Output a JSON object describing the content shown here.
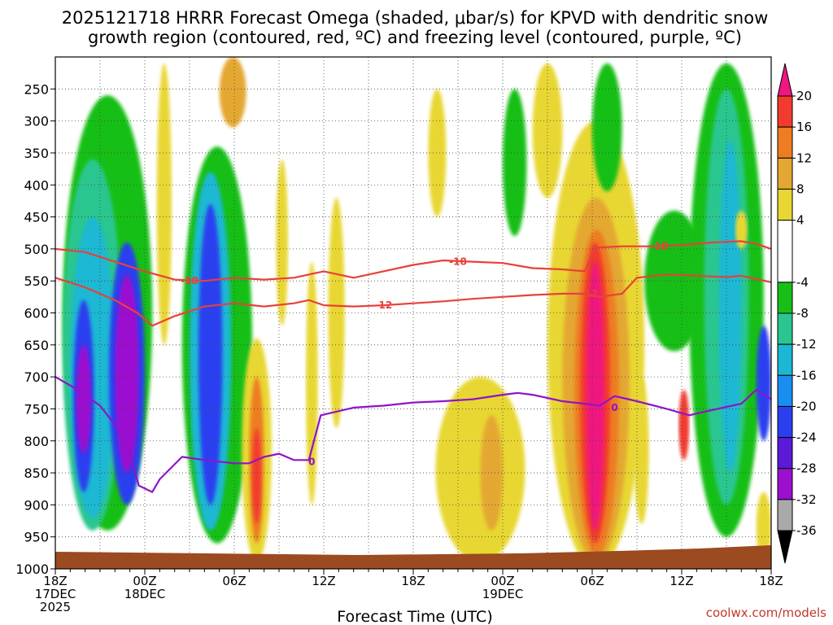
{
  "chart_data": {
    "type": "heatmap",
    "title_line1": "2025121718 HRRR Forecast Omega (shaded, μbar/s) for KPVD with dendritic snow",
    "title_line2": "growth region (contoured, red, ºC) and freezing level (contoured, purple, ºC)",
    "xlabel": "Forecast Time (UTC)",
    "credit": "coolwx.com/models",
    "y_axis": {
      "ylabel": "",
      "ylim": [
        1000,
        200
      ],
      "ticks": [
        250,
        300,
        350,
        400,
        450,
        500,
        550,
        600,
        650,
        700,
        750,
        800,
        850,
        900,
        950,
        1000
      ],
      "tick_labels": [
        "250",
        "300",
        "350",
        "400",
        "450",
        "500",
        "550",
        "600",
        "650",
        "700",
        "750",
        "800",
        "850",
        "900",
        "950",
        "1000"
      ]
    },
    "x_axis": {
      "xlim": [
        0,
        48
      ],
      "ticks": [
        {
          "hour": 0,
          "lines": [
            "18Z",
            "17DEC",
            "2025"
          ]
        },
        {
          "hour": 6,
          "lines": [
            "00Z",
            "18DEC"
          ]
        },
        {
          "hour": 12,
          "lines": [
            "06Z"
          ]
        },
        {
          "hour": 18,
          "lines": [
            "12Z"
          ]
        },
        {
          "hour": 24,
          "lines": [
            "18Z"
          ]
        },
        {
          "hour": 30,
          "lines": [
            "00Z",
            "19DEC"
          ]
        },
        {
          "hour": 36,
          "lines": [
            "06Z"
          ]
        },
        {
          "hour": 42,
          "lines": [
            "12Z"
          ]
        },
        {
          "hour": 48,
          "lines": [
            "18Z"
          ]
        }
      ]
    },
    "colorbar": {
      "tick_labels": [
        "20",
        "16",
        "12",
        "8",
        "4",
        "-4",
        "-8",
        "-12",
        "-16",
        "-20",
        "-24",
        "-28",
        "-32",
        "-36"
      ],
      "bins": [
        {
          "from": 20,
          "to": 28,
          "color": "#f0157f"
        },
        {
          "from": 16,
          "to": 20,
          "color": "#f23b2e"
        },
        {
          "from": 12,
          "to": 16,
          "color": "#ee7d22"
        },
        {
          "from": 8,
          "to": 12,
          "color": "#e4a832"
        },
        {
          "from": 4,
          "to": 8,
          "color": "#e8d733"
        },
        {
          "from": -4,
          "to": 4,
          "color": "#ffffff"
        },
        {
          "from": -8,
          "to": -4,
          "color": "#17bf17"
        },
        {
          "from": -12,
          "to": -8,
          "color": "#2bc690"
        },
        {
          "from": -16,
          "to": -12,
          "color": "#1ab8d4"
        },
        {
          "from": -20,
          "to": -16,
          "color": "#1a8ef0"
        },
        {
          "from": -24,
          "to": -20,
          "color": "#2b3ff0"
        },
        {
          "from": -28,
          "to": -24,
          "color": "#5b19d8"
        },
        {
          "from": -32,
          "to": -28,
          "color": "#9b0fcf"
        },
        {
          "from": -36,
          "to": -32,
          "color": "#a9a9a9"
        },
        {
          "from": -44,
          "to": -36,
          "color": "#000000"
        }
      ]
    },
    "shaded_regions": [
      {
        "value": -10,
        "color": "#17bf17",
        "hours": [
          0.5,
          6.5
        ],
        "p": [
          260,
          940
        ]
      },
      {
        "value": -14,
        "color": "#2bc690",
        "hours": [
          0.5,
          4.5
        ],
        "p": [
          360,
          940
        ]
      },
      {
        "value": -18,
        "color": "#1ab8d4",
        "hours": [
          1.0,
          4.0
        ],
        "p": [
          450,
          920
        ]
      },
      {
        "value": -22,
        "color": "#2b3ff0",
        "hours": [
          1.2,
          2.6
        ],
        "p": [
          580,
          880
        ]
      },
      {
        "value": -30,
        "color": "#9b0fcf",
        "hours": [
          1.4,
          2.4
        ],
        "p": [
          650,
          820
        ]
      },
      {
        "value": -22,
        "color": "#2b3ff0",
        "hours": [
          3.6,
          6.0
        ],
        "p": [
          490,
          900
        ]
      },
      {
        "value": -30,
        "color": "#9b0fcf",
        "hours": [
          4.0,
          5.6
        ],
        "p": [
          540,
          850
        ]
      },
      {
        "value": -10,
        "color": "#17bf17",
        "hours": [
          8.5,
          13.2
        ],
        "p": [
          340,
          960
        ]
      },
      {
        "value": -18,
        "color": "#1ab8d4",
        "hours": [
          9.0,
          11.8
        ],
        "p": [
          380,
          940
        ]
      },
      {
        "value": -24,
        "color": "#2b3ff0",
        "hours": [
          9.6,
          11.2
        ],
        "p": [
          430,
          900
        ]
      },
      {
        "value": 6,
        "color": "#e8d733",
        "hours": [
          6.8,
          7.8
        ],
        "p": [
          210,
          650
        ]
      },
      {
        "value": 10,
        "color": "#e4a832",
        "hours": [
          11.0,
          12.8
        ],
        "p": [
          200,
          310
        ]
      },
      {
        "value": 6,
        "color": "#e8d733",
        "hours": [
          12.5,
          14.5
        ],
        "p": [
          640,
          990
        ]
      },
      {
        "value": 14,
        "color": "#ee7d22",
        "hours": [
          13.0,
          14.0
        ],
        "p": [
          700,
          960
        ]
      },
      {
        "value": 18,
        "color": "#f23b2e",
        "hours": [
          13.2,
          13.8
        ],
        "p": [
          780,
          930
        ]
      },
      {
        "value": 6,
        "color": "#e8d733",
        "hours": [
          14.8,
          15.6
        ],
        "p": [
          360,
          620
        ]
      },
      {
        "value": 6,
        "color": "#e8d733",
        "hours": [
          16.8,
          17.6
        ],
        "p": [
          520,
          900
        ]
      },
      {
        "value": 6,
        "color": "#e8d733",
        "hours": [
          18.3,
          19.4
        ],
        "p": [
          420,
          780
        ]
      },
      {
        "value": 6,
        "color": "#e8d733",
        "hours": [
          25.0,
          26.2
        ],
        "p": [
          250,
          450
        ]
      },
      {
        "value": 6,
        "color": "#e8d733",
        "hours": [
          25.5,
          31.5
        ],
        "p": [
          700,
          990
        ]
      },
      {
        "value": 10,
        "color": "#e4a832",
        "hours": [
          28.5,
          30.0
        ],
        "p": [
          760,
          940
        ]
      },
      {
        "value": -10,
        "color": "#17bf17",
        "hours": [
          30.0,
          31.6
        ],
        "p": [
          250,
          480
        ]
      },
      {
        "value": 6,
        "color": "#e8d733",
        "hours": [
          32.0,
          34.0
        ],
        "p": [
          210,
          420
        ]
      },
      {
        "value": 6,
        "color": "#e8d733",
        "hours": [
          33.0,
          39.5
        ],
        "p": [
          300,
          1000
        ]
      },
      {
        "value": 10,
        "color": "#e4a832",
        "hours": [
          34.0,
          38.5
        ],
        "p": [
          420,
          990
        ]
      },
      {
        "value": 14,
        "color": "#ee7d22",
        "hours": [
          34.8,
          37.8
        ],
        "p": [
          470,
          980
        ]
      },
      {
        "value": 18,
        "color": "#f23b2e",
        "hours": [
          35.2,
          37.2
        ],
        "p": [
          490,
          960
        ]
      },
      {
        "value": 24,
        "color": "#f0157f",
        "hours": [
          35.6,
          36.8
        ],
        "p": [
          520,
          940
        ]
      },
      {
        "value": -10,
        "color": "#17bf17",
        "hours": [
          36.0,
          38.0
        ],
        "p": [
          210,
          410
        ]
      },
      {
        "value": -10,
        "color": "#17bf17",
        "hours": [
          39.5,
          43.5
        ],
        "p": [
          440,
          660
        ]
      },
      {
        "value": -10,
        "color": "#17bf17",
        "hours": [
          42.5,
          47.5
        ],
        "p": [
          210,
          950
        ]
      },
      {
        "value": -14,
        "color": "#2bc690",
        "hours": [
          43.5,
          46.5
        ],
        "p": [
          250,
          900
        ]
      },
      {
        "value": -18,
        "color": "#1ab8d4",
        "hours": [
          44.5,
          46.0
        ],
        "p": [
          330,
          850
        ]
      },
      {
        "value": -24,
        "color": "#2b3ff0",
        "hours": [
          47.0,
          48.0
        ],
        "p": [
          620,
          800
        ]
      },
      {
        "value": 6,
        "color": "#e8d733",
        "hours": [
          38.8,
          39.8
        ],
        "p": [
          700,
          930
        ]
      },
      {
        "value": 18,
        "color": "#f23b2e",
        "hours": [
          41.8,
          42.5
        ],
        "p": [
          720,
          830
        ]
      },
      {
        "value": 6,
        "color": "#e8d733",
        "hours": [
          45.6,
          46.4
        ],
        "p": [
          440,
          500
        ]
      },
      {
        "value": 6,
        "color": "#e8d733",
        "hours": [
          47.0,
          48.0
        ],
        "p": [
          880,
          990
        ]
      }
    ],
    "contours": [
      {
        "name": "isotherm-minus-18",
        "kind": "dgz",
        "label": "-18",
        "color": "#e8413a",
        "points": [
          [
            0,
            500
          ],
          [
            2,
            505
          ],
          [
            4,
            520
          ],
          [
            6,
            535
          ],
          [
            8,
            548
          ],
          [
            10,
            550
          ],
          [
            12,
            545
          ],
          [
            14,
            548
          ],
          [
            16,
            545
          ],
          [
            18,
            535
          ],
          [
            20,
            545
          ],
          [
            22,
            535
          ],
          [
            24,
            525
          ],
          [
            26,
            518
          ],
          [
            28,
            520
          ],
          [
            30,
            522
          ],
          [
            32,
            530
          ],
          [
            34,
            532
          ],
          [
            35.5,
            535
          ],
          [
            36.2,
            498
          ],
          [
            38,
            496
          ],
          [
            40,
            496
          ],
          [
            42,
            494
          ],
          [
            44,
            490
          ],
          [
            46,
            488
          ],
          [
            47,
            492
          ],
          [
            48,
            500
          ]
        ],
        "label_at": [
          [
            9,
            550
          ],
          [
            27,
            520
          ],
          [
            40.5,
            496
          ]
        ]
      },
      {
        "name": "isotherm-minus-12",
        "kind": "dgz",
        "label": "-12",
        "color": "#e8413a",
        "points": [
          [
            0,
            545
          ],
          [
            2,
            560
          ],
          [
            4,
            580
          ],
          [
            5.5,
            600
          ],
          [
            6.5,
            620
          ],
          [
            8,
            605
          ],
          [
            10,
            590
          ],
          [
            12,
            585
          ],
          [
            14,
            590
          ],
          [
            16,
            585
          ],
          [
            17,
            580
          ],
          [
            18,
            588
          ],
          [
            20,
            590
          ],
          [
            22,
            588
          ],
          [
            24,
            585
          ],
          [
            26,
            582
          ],
          [
            28,
            578
          ],
          [
            30,
            575
          ],
          [
            32,
            572
          ],
          [
            34,
            570
          ],
          [
            35.5,
            570
          ],
          [
            36.5,
            575
          ],
          [
            38,
            570
          ],
          [
            39,
            545
          ],
          [
            41,
            540
          ],
          [
            43,
            542
          ],
          [
            45,
            544
          ],
          [
            46,
            542
          ],
          [
            48,
            552
          ]
        ],
        "label_at": [
          [
            22,
            588
          ],
          [
            35.8,
            570
          ]
        ]
      },
      {
        "name": "isotherm-zero",
        "kind": "freezing",
        "label": "0",
        "color": "#8f14c9",
        "points": [
          [
            0,
            700
          ],
          [
            1.5,
            720
          ],
          [
            3,
            745
          ],
          [
            4,
            775
          ],
          [
            5,
            820
          ],
          [
            5.6,
            870
          ],
          [
            6.5,
            880
          ],
          [
            7,
            860
          ],
          [
            8.5,
            825
          ],
          [
            10,
            830
          ],
          [
            12,
            835
          ],
          [
            13,
            835
          ],
          [
            14,
            825
          ],
          [
            15,
            820
          ],
          [
            16,
            830
          ],
          [
            17,
            830
          ],
          [
            17.8,
            760
          ],
          [
            20,
            748
          ],
          [
            22,
            745
          ],
          [
            24,
            740
          ],
          [
            26,
            738
          ],
          [
            28,
            735
          ],
          [
            30,
            728
          ],
          [
            31,
            725
          ],
          [
            32,
            728
          ],
          [
            34,
            738
          ],
          [
            35.5,
            742
          ],
          [
            36.5,
            745
          ],
          [
            37.5,
            730
          ],
          [
            39,
            738
          ],
          [
            41,
            750
          ],
          [
            42.5,
            760
          ],
          [
            44,
            752
          ],
          [
            46,
            742
          ],
          [
            47,
            720
          ],
          [
            48,
            735
          ]
        ],
        "label_at": [
          [
            17.2,
            833
          ],
          [
            37.5,
            748
          ]
        ]
      }
    ]
  }
}
